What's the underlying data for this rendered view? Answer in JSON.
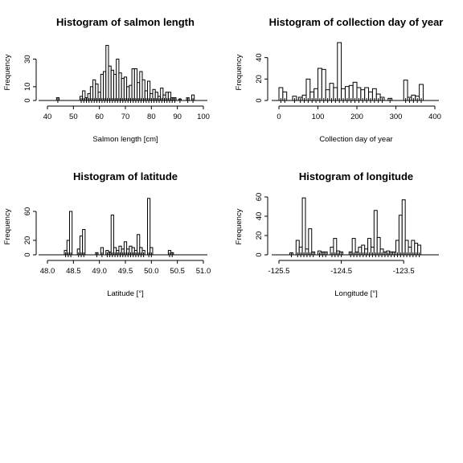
{
  "chart_data": [
    {
      "type": "bar",
      "title": "Histogram of salmon length",
      "xlabel": "Salmon length [cm]",
      "ylabel": "Frequency",
      "xticks": [
        40,
        50,
        60,
        70,
        80,
        90,
        100
      ],
      "yticks": [
        0,
        10,
        30
      ],
      "xlim": [
        40,
        100
      ],
      "ylim": [
        0,
        42
      ],
      "grid": false,
      "bins": [
        {
          "x": 44,
          "count": 2
        },
        {
          "x": 53,
          "count": 3
        },
        {
          "x": 54,
          "count": 7
        },
        {
          "x": 55,
          "count": 2
        },
        {
          "x": 56,
          "count": 5
        },
        {
          "x": 57,
          "count": 10
        },
        {
          "x": 58,
          "count": 15
        },
        {
          "x": 59,
          "count": 12
        },
        {
          "x": 60,
          "count": 6
        },
        {
          "x": 61,
          "count": 19
        },
        {
          "x": 62,
          "count": 21
        },
        {
          "x": 63,
          "count": 40
        },
        {
          "x": 64,
          "count": 25
        },
        {
          "x": 65,
          "count": 22
        },
        {
          "x": 66,
          "count": 19
        },
        {
          "x": 67,
          "count": 30
        },
        {
          "x": 68,
          "count": 20
        },
        {
          "x": 69,
          "count": 16
        },
        {
          "x": 70,
          "count": 17
        },
        {
          "x": 71,
          "count": 10
        },
        {
          "x": 72,
          "count": 11
        },
        {
          "x": 73,
          "count": 23
        },
        {
          "x": 74,
          "count": 23
        },
        {
          "x": 75,
          "count": 13
        },
        {
          "x": 76,
          "count": 21
        },
        {
          "x": 77,
          "count": 15
        },
        {
          "x": 78,
          "count": 7
        },
        {
          "x": 79,
          "count": 14
        },
        {
          "x": 80,
          "count": 5
        },
        {
          "x": 81,
          "count": 8
        },
        {
          "x": 82,
          "count": 6
        },
        {
          "x": 83,
          "count": 3
        },
        {
          "x": 84,
          "count": 9
        },
        {
          "x": 85,
          "count": 4
        },
        {
          "x": 86,
          "count": 6
        },
        {
          "x": 87,
          "count": 6
        },
        {
          "x": 88,
          "count": 2
        },
        {
          "x": 89,
          "count": 2
        },
        {
          "x": 91,
          "count": 1
        },
        {
          "x": 94,
          "count": 2
        },
        {
          "x": 96,
          "count": 4
        }
      ]
    },
    {
      "type": "bar",
      "title": "Histogram of collection day of year",
      "xlabel": "Collection day of year",
      "ylabel": "Frequency",
      "xticks": [
        0,
        100,
        200,
        300,
        400
      ],
      "yticks": [
        0,
        20,
        40
      ],
      "xlim": [
        0,
        400
      ],
      "ylim": [
        0,
        54
      ],
      "grid": false,
      "bins": [
        {
          "x": 5,
          "count": 12
        },
        {
          "x": 15,
          "count": 8
        },
        {
          "x": 40,
          "count": 4
        },
        {
          "x": 55,
          "count": 3
        },
        {
          "x": 65,
          "count": 5
        },
        {
          "x": 75,
          "count": 20
        },
        {
          "x": 85,
          "count": 8
        },
        {
          "x": 95,
          "count": 11
        },
        {
          "x": 105,
          "count": 30
        },
        {
          "x": 115,
          "count": 29
        },
        {
          "x": 125,
          "count": 10
        },
        {
          "x": 135,
          "count": 16
        },
        {
          "x": 145,
          "count": 12
        },
        {
          "x": 155,
          "count": 54
        },
        {
          "x": 165,
          "count": 11
        },
        {
          "x": 175,
          "count": 13
        },
        {
          "x": 185,
          "count": 14
        },
        {
          "x": 195,
          "count": 17
        },
        {
          "x": 205,
          "count": 12
        },
        {
          "x": 215,
          "count": 10
        },
        {
          "x": 225,
          "count": 12
        },
        {
          "x": 235,
          "count": 8
        },
        {
          "x": 245,
          "count": 11
        },
        {
          "x": 255,
          "count": 6
        },
        {
          "x": 265,
          "count": 3
        },
        {
          "x": 285,
          "count": 2
        },
        {
          "x": 325,
          "count": 19
        },
        {
          "x": 335,
          "count": 3
        },
        {
          "x": 345,
          "count": 5
        },
        {
          "x": 355,
          "count": 4
        },
        {
          "x": 365,
          "count": 15
        }
      ]
    },
    {
      "type": "bar",
      "title": "Histogram of latitude",
      "xlabel": "Latitude [°]",
      "ylabel": "Frequency",
      "xticks": [
        48.0,
        48.5,
        49.0,
        49.5,
        50.0,
        50.5,
        51.0
      ],
      "xtick_labels": [
        "48.0",
        "48.5",
        "49.0",
        "49.5",
        "50.0",
        "50.5",
        "51.0"
      ],
      "yticks": [
        0,
        20,
        60
      ],
      "xlim": [
        48.0,
        51.0
      ],
      "ylim": [
        0,
        80
      ],
      "grid": false,
      "bins": [
        {
          "x": 48.35,
          "count": 6
        },
        {
          "x": 48.4,
          "count": 20
        },
        {
          "x": 48.45,
          "count": 60
        },
        {
          "x": 48.6,
          "count": 8
        },
        {
          "x": 48.65,
          "count": 26
        },
        {
          "x": 48.7,
          "count": 35
        },
        {
          "x": 48.95,
          "count": 3
        },
        {
          "x": 49.05,
          "count": 10
        },
        {
          "x": 49.15,
          "count": 6
        },
        {
          "x": 49.2,
          "count": 4
        },
        {
          "x": 49.25,
          "count": 55
        },
        {
          "x": 49.3,
          "count": 10
        },
        {
          "x": 49.35,
          "count": 6
        },
        {
          "x": 49.4,
          "count": 12
        },
        {
          "x": 49.45,
          "count": 8
        },
        {
          "x": 49.5,
          "count": 18
        },
        {
          "x": 49.55,
          "count": 8
        },
        {
          "x": 49.6,
          "count": 12
        },
        {
          "x": 49.65,
          "count": 10
        },
        {
          "x": 49.7,
          "count": 6
        },
        {
          "x": 49.75,
          "count": 28
        },
        {
          "x": 49.8,
          "count": 10
        },
        {
          "x": 49.85,
          "count": 6
        },
        {
          "x": 49.95,
          "count": 78
        },
        {
          "x": 50.0,
          "count": 10
        },
        {
          "x": 50.35,
          "count": 6
        },
        {
          "x": 50.4,
          "count": 3
        }
      ]
    },
    {
      "type": "bar",
      "title": "Histogram of longitude",
      "xlabel": "Longitude [°]",
      "ylabel": "Frequency",
      "xticks": [
        -125.5,
        -124.5,
        -123.5
      ],
      "xtick_labels": [
        "-125.5",
        "-124.5",
        "-123.5"
      ],
      "yticks": [
        0,
        20,
        40,
        60
      ],
      "xlim": [
        -125.5,
        -123.0
      ],
      "ylim": [
        0,
        60
      ],
      "grid": false,
      "bins": [
        {
          "x": -125.3,
          "count": 2
        },
        {
          "x": -125.2,
          "count": 15
        },
        {
          "x": -125.15,
          "count": 8
        },
        {
          "x": -125.1,
          "count": 59
        },
        {
          "x": -125.05,
          "count": 6
        },
        {
          "x": -125.0,
          "count": 27
        },
        {
          "x": -124.95,
          "count": 3
        },
        {
          "x": -124.85,
          "count": 4
        },
        {
          "x": -124.8,
          "count": 3
        },
        {
          "x": -124.75,
          "count": 3
        },
        {
          "x": -124.65,
          "count": 8
        },
        {
          "x": -124.6,
          "count": 17
        },
        {
          "x": -124.55,
          "count": 4
        },
        {
          "x": -124.5,
          "count": 3
        },
        {
          "x": -124.35,
          "count": 3
        },
        {
          "x": -124.3,
          "count": 17
        },
        {
          "x": -124.25,
          "count": 3
        },
        {
          "x": -124.2,
          "count": 8
        },
        {
          "x": -124.15,
          "count": 10
        },
        {
          "x": -124.1,
          "count": 6
        },
        {
          "x": -124.05,
          "count": 17
        },
        {
          "x": -124.0,
          "count": 8
        },
        {
          "x": -123.95,
          "count": 46
        },
        {
          "x": -123.9,
          "count": 18
        },
        {
          "x": -123.85,
          "count": 6
        },
        {
          "x": -123.8,
          "count": 3
        },
        {
          "x": -123.75,
          "count": 4
        },
        {
          "x": -123.7,
          "count": 3
        },
        {
          "x": -123.65,
          "count": 3
        },
        {
          "x": -123.6,
          "count": 15
        },
        {
          "x": -123.55,
          "count": 41
        },
        {
          "x": -123.5,
          "count": 57
        },
        {
          "x": -123.45,
          "count": 15
        },
        {
          "x": -123.4,
          "count": 8
        },
        {
          "x": -123.35,
          "count": 15
        },
        {
          "x": -123.3,
          "count": 12
        },
        {
          "x": -123.25,
          "count": 10
        }
      ]
    }
  ]
}
